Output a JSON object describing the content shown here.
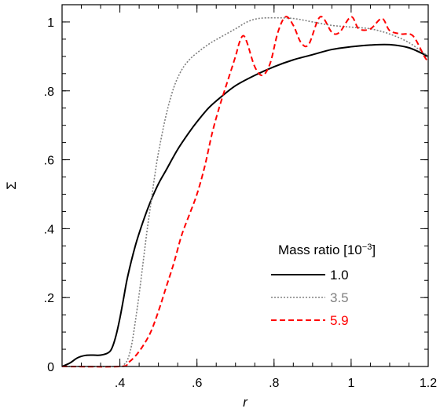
{
  "chart_data": {
    "type": "line",
    "xlabel": "r",
    "ylabel": "Σ",
    "xlim": [
      0.25,
      1.2
    ],
    "ylim": [
      0,
      1.05
    ],
    "x_ticks": [
      {
        "value": 0.4,
        "label": ".4"
      },
      {
        "value": 0.6,
        "label": ".6"
      },
      {
        "value": 0.8,
        "label": ".8"
      },
      {
        "value": 1.0,
        "label": "1"
      },
      {
        "value": 1.2,
        "label": "1.2"
      }
    ],
    "y_ticks": [
      {
        "value": 0,
        "label": "0"
      },
      {
        "value": 0.2,
        "label": ".2"
      },
      {
        "value": 0.4,
        "label": ".4"
      },
      {
        "value": 0.6,
        "label": ".6"
      },
      {
        "value": 0.8,
        "label": ".8"
      },
      {
        "value": 1.0,
        "label": "1"
      }
    ],
    "x_minor_step": 0.05,
    "y_minor_step": 0.05,
    "grid": false,
    "legend": {
      "title": "Mass ratio [10",
      "title_exp": "−3",
      "title_end": "]",
      "placement": "bottom-right"
    },
    "series": [
      {
        "name": "1.0",
        "color": "#000000",
        "dash": "solid",
        "points": [
          [
            0.25,
            0.0
          ],
          [
            0.27,
            0.01
          ],
          [
            0.29,
            0.025
          ],
          [
            0.31,
            0.032
          ],
          [
            0.33,
            0.033
          ],
          [
            0.35,
            0.033
          ],
          [
            0.37,
            0.04
          ],
          [
            0.38,
            0.055
          ],
          [
            0.39,
            0.09
          ],
          [
            0.4,
            0.14
          ],
          [
            0.41,
            0.2
          ],
          [
            0.42,
            0.26
          ],
          [
            0.44,
            0.35
          ],
          [
            0.46,
            0.42
          ],
          [
            0.48,
            0.48
          ],
          [
            0.5,
            0.53
          ],
          [
            0.52,
            0.57
          ],
          [
            0.55,
            0.63
          ],
          [
            0.58,
            0.68
          ],
          [
            0.6,
            0.71
          ],
          [
            0.63,
            0.75
          ],
          [
            0.66,
            0.78
          ],
          [
            0.7,
            0.815
          ],
          [
            0.75,
            0.845
          ],
          [
            0.8,
            0.87
          ],
          [
            0.85,
            0.89
          ],
          [
            0.9,
            0.905
          ],
          [
            0.95,
            0.92
          ],
          [
            1.0,
            0.928
          ],
          [
            1.05,
            0.933
          ],
          [
            1.1,
            0.934
          ],
          [
            1.15,
            0.925
          ],
          [
            1.2,
            0.9
          ]
        ]
      },
      {
        "name": "3.5",
        "color": "#808080",
        "dash": "dotted",
        "points": [
          [
            0.25,
            0.0
          ],
          [
            0.4,
            0.0
          ],
          [
            0.41,
            0.005
          ],
          [
            0.42,
            0.02
          ],
          [
            0.43,
            0.06
          ],
          [
            0.44,
            0.13
          ],
          [
            0.45,
            0.21
          ],
          [
            0.46,
            0.3
          ],
          [
            0.47,
            0.39
          ],
          [
            0.48,
            0.47
          ],
          [
            0.49,
            0.55
          ],
          [
            0.5,
            0.62
          ],
          [
            0.52,
            0.73
          ],
          [
            0.54,
            0.81
          ],
          [
            0.56,
            0.86
          ],
          [
            0.58,
            0.89
          ],
          [
            0.6,
            0.91
          ],
          [
            0.63,
            0.935
          ],
          [
            0.66,
            0.955
          ],
          [
            0.7,
            0.98
          ],
          [
            0.73,
            1.0
          ],
          [
            0.76,
            1.01
          ],
          [
            0.8,
            1.012
          ],
          [
            0.85,
            1.01
          ],
          [
            0.9,
            1.0
          ],
          [
            0.95,
            0.99
          ],
          [
            1.0,
            0.985
          ],
          [
            1.05,
            0.98
          ],
          [
            1.1,
            0.965
          ],
          [
            1.15,
            0.94
          ],
          [
            1.2,
            0.9
          ]
        ]
      },
      {
        "name": "5.9",
        "color": "#ff0000",
        "dash": "dashed",
        "points": [
          [
            0.25,
            0.0
          ],
          [
            0.4,
            0.0
          ],
          [
            0.42,
            0.01
          ],
          [
            0.44,
            0.03
          ],
          [
            0.46,
            0.06
          ],
          [
            0.48,
            0.1
          ],
          [
            0.5,
            0.16
          ],
          [
            0.52,
            0.23
          ],
          [
            0.54,
            0.3
          ],
          [
            0.56,
            0.38
          ],
          [
            0.58,
            0.44
          ],
          [
            0.6,
            0.5
          ],
          [
            0.62,
            0.58
          ],
          [
            0.64,
            0.68
          ],
          [
            0.66,
            0.76
          ],
          [
            0.68,
            0.83
          ],
          [
            0.7,
            0.9
          ],
          [
            0.71,
            0.94
          ],
          [
            0.72,
            0.96
          ],
          [
            0.73,
            0.94
          ],
          [
            0.75,
            0.87
          ],
          [
            0.77,
            0.845
          ],
          [
            0.79,
            0.88
          ],
          [
            0.81,
            0.97
          ],
          [
            0.83,
            1.015
          ],
          [
            0.85,
            0.99
          ],
          [
            0.87,
            0.94
          ],
          [
            0.89,
            0.935
          ],
          [
            0.92,
            1.015
          ],
          [
            0.95,
            0.97
          ],
          [
            0.97,
            0.97
          ],
          [
            1.0,
            1.015
          ],
          [
            1.02,
            0.98
          ],
          [
            1.05,
            0.98
          ],
          [
            1.08,
            1.01
          ],
          [
            1.1,
            0.975
          ],
          [
            1.13,
            0.965
          ],
          [
            1.16,
            0.96
          ],
          [
            1.19,
            0.9
          ],
          [
            1.2,
            0.885
          ]
        ]
      }
    ]
  }
}
